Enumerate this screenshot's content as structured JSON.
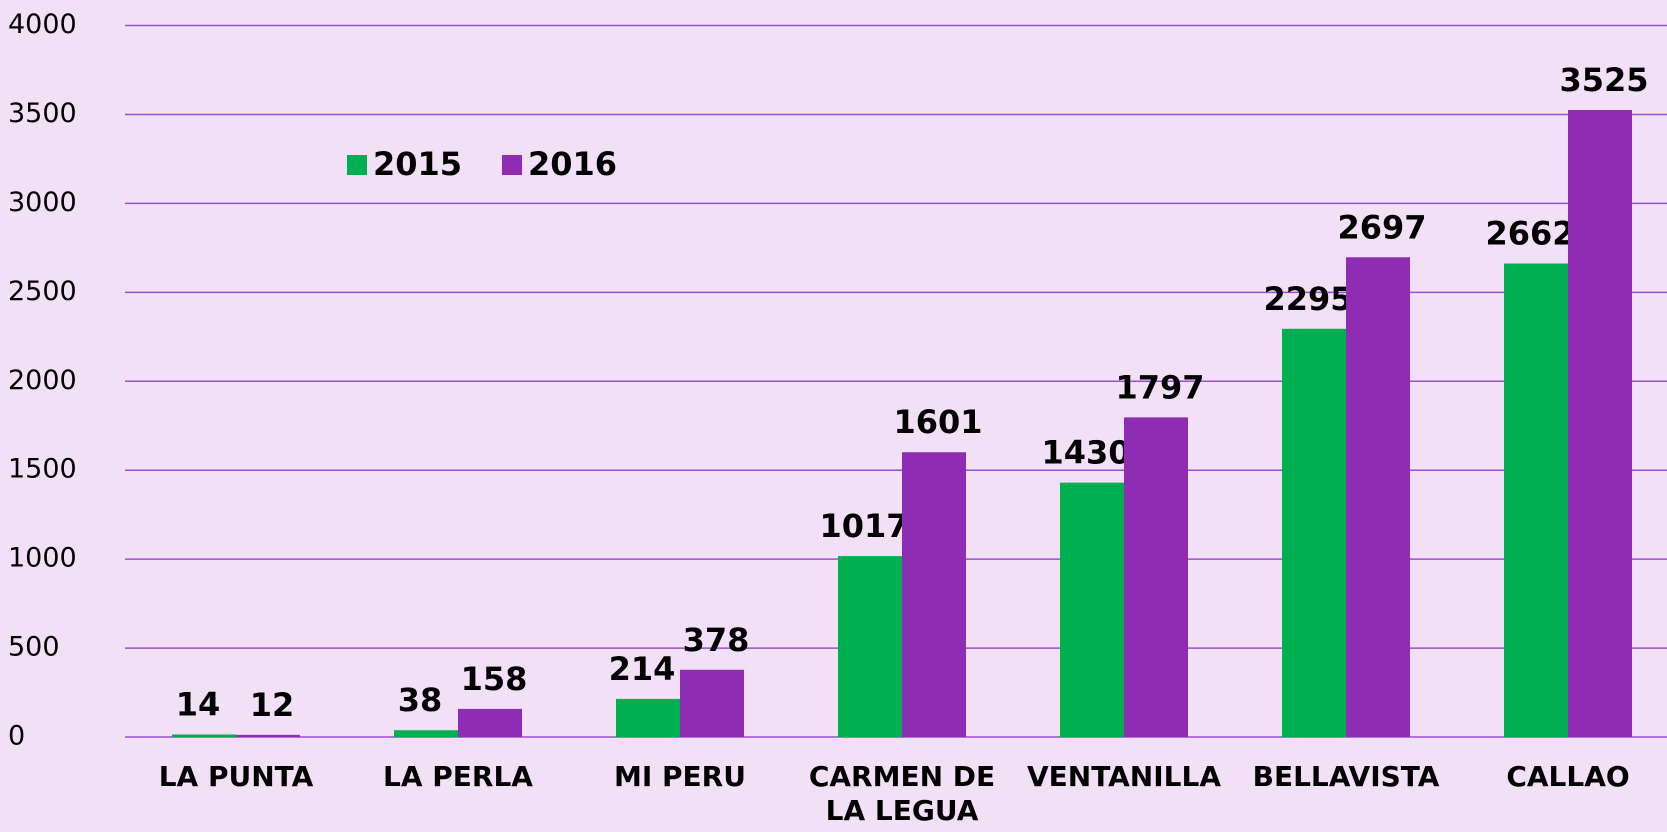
{
  "chart_data": {
    "type": "bar",
    "categories": [
      "LA PUNTA",
      "LA PERLA",
      "MI PERU",
      "CARMEN DE LA LEGUA",
      "VENTANILLA",
      "BELLAVISTA",
      "CALLAO"
    ],
    "series": [
      {
        "name": "2015",
        "color": "#00b050",
        "values": [
          14,
          38,
          214,
          1017,
          1430,
          2295,
          2662
        ]
      },
      {
        "name": "2016",
        "color": "#8e2db3",
        "values": [
          12,
          158,
          378,
          1601,
          1797,
          2697,
          3525
        ]
      }
    ],
    "ylim": [
      0,
      4000
    ],
    "yticks": [
      0,
      500,
      1000,
      1500,
      2000,
      2500,
      3000,
      3500,
      4000
    ],
    "grid": true,
    "legend": "top-left"
  }
}
